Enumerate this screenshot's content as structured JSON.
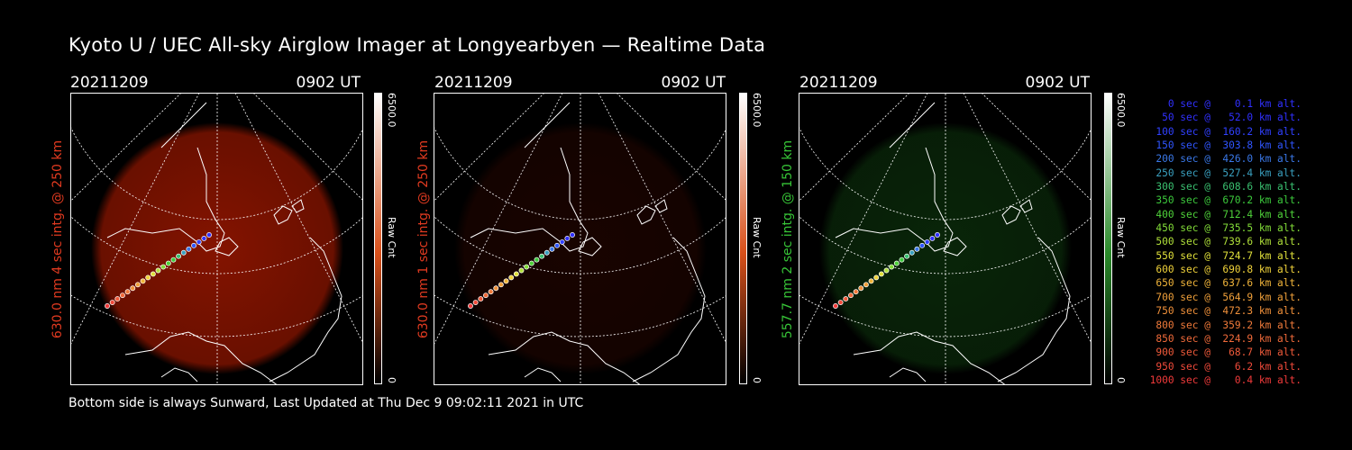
{
  "title": "Kyoto U / UEC All-sky Airglow Imager at Longyearbyen — Realtime Data",
  "footer": "Bottom side is always Sunward, Last Updated at Thu Dec  9 09:02:11 2021 in UTC",
  "panels": [
    {
      "date": "20211209",
      "time": "0902 UT",
      "ylabel": "630.0 nm 4 sec intg. @ 250 km",
      "label_color": "#e03a20",
      "cbar_max": "6500.0",
      "cbar_min": "0",
      "cbar_unit": "Raw Cnt",
      "cbar_color": "#d8501a",
      "glow_color": "#b01a00",
      "glow_intensity": 0.75
    },
    {
      "date": "20211209",
      "time": "0902 UT",
      "ylabel": "630.0 nm 1 sec intg. @ 250 km",
      "label_color": "#e03a20",
      "cbar_max": "6500.0",
      "cbar_min": "0",
      "cbar_unit": "Raw Cnt",
      "cbar_color": "#d8501a",
      "glow_color": "#701000",
      "glow_intensity": 0.22
    },
    {
      "date": "20211209",
      "time": "0902 UT",
      "ylabel": "557.7 nm 2 sec intg. @ 150 km",
      "label_color": "#37c437",
      "cbar_max": "6500.0",
      "cbar_min": "0",
      "cbar_unit": "Raw Cnt",
      "cbar_color": "#2a8a2a",
      "glow_color": "#1a6a1a",
      "glow_intensity": 0.35
    }
  ],
  "legend": [
    {
      "text": "   0 sec @    0.1 km alt.",
      "color": "#3030ff"
    },
    {
      "text": "  50 sec @   52.0 km alt.",
      "color": "#3030ff"
    },
    {
      "text": " 100 sec @  160.2 km alt.",
      "color": "#3040ff"
    },
    {
      "text": " 150 sec @  303.8 km alt.",
      "color": "#2f55ff"
    },
    {
      "text": " 200 sec @  426.0 km alt.",
      "color": "#3a78e8"
    },
    {
      "text": " 250 sec @  527.4 km alt.",
      "color": "#3aa0c0"
    },
    {
      "text": " 300 sec @  608.6 km alt.",
      "color": "#3ac070"
    },
    {
      "text": " 350 sec @  670.2 km alt.",
      "color": "#3cc93c"
    },
    {
      "text": " 400 sec @  712.4 km alt.",
      "color": "#4fd23a"
    },
    {
      "text": " 450 sec @  735.5 km alt.",
      "color": "#82dc38"
    },
    {
      "text": " 500 sec @  739.6 km alt.",
      "color": "#b0e03a"
    },
    {
      "text": " 550 sec @  724.7 km alt.",
      "color": "#e0e03a"
    },
    {
      "text": " 600 sec @  690.8 km alt.",
      "color": "#f0d23a"
    },
    {
      "text": " 650 sec @  637.6 km alt.",
      "color": "#f0b43a"
    },
    {
      "text": " 700 sec @  564.9 km alt.",
      "color": "#f0a03a"
    },
    {
      "text": " 750 sec @  472.3 km alt.",
      "color": "#f0903a"
    },
    {
      "text": " 800 sec @  359.2 km alt.",
      "color": "#f07a3a"
    },
    {
      "text": " 850 sec @  224.9 km alt.",
      "color": "#f06a3a"
    },
    {
      "text": " 900 sec @   68.7 km alt.",
      "color": "#f05a3a"
    },
    {
      "text": " 950 sec @    6.2 km alt.",
      "color": "#f04a3a"
    },
    {
      "text": "1000 sec @    0.4 km alt.",
      "color": "#f03a3a"
    }
  ]
}
